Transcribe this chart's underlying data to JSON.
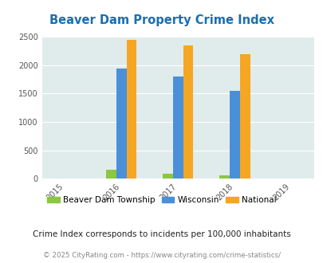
{
  "title": "Beaver Dam Property Crime Index",
  "years": [
    2015,
    2016,
    2017,
    2018,
    2019
  ],
  "bar_years": [
    2016,
    2017,
    2018
  ],
  "beaver_dam": [
    160,
    90,
    55
  ],
  "wisconsin": [
    1940,
    1800,
    1550
  ],
  "national": [
    2440,
    2350,
    2200
  ],
  "bar_width": 0.18,
  "colors": {
    "beaver_dam": "#8DC63F",
    "wisconsin": "#4A90D9",
    "national": "#F5A623"
  },
  "ylim": [
    0,
    2500
  ],
  "yticks": [
    0,
    500,
    1000,
    1500,
    2000,
    2500
  ],
  "background_color": "#E0EBEB",
  "title_color": "#1A6FAF",
  "subtitle": "Crime Index corresponds to incidents per 100,000 inhabitants",
  "footer": "© 2025 CityRating.com - https://www.cityrating.com/crime-statistics/",
  "legend_labels": [
    "Beaver Dam Township",
    "Wisconsin",
    "National"
  ]
}
